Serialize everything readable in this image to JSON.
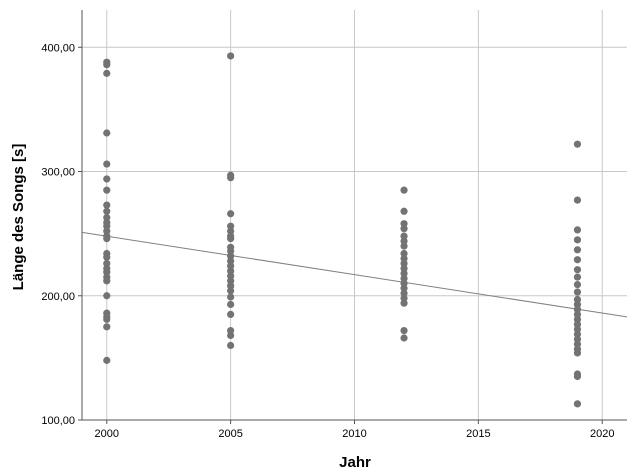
{
  "chart_data": {
    "type": "scatter",
    "title": "",
    "xlabel": "Jahr",
    "ylabel": "Länge des Songs [s]",
    "xlim": [
      1999,
      2021
    ],
    "ylim": [
      100,
      430
    ],
    "x_ticks": [
      2000,
      2005,
      2010,
      2015,
      2020
    ],
    "x_tick_labels": [
      "2000",
      "2005",
      "2010",
      "2015",
      "2020"
    ],
    "y_ticks": [
      100,
      200,
      300,
      400
    ],
    "y_tick_labels": [
      "100,00",
      "200,00",
      "300,00",
      "400,00"
    ],
    "grid": true,
    "point_color": "#737373",
    "series": [
      {
        "points": [
          [
            2000,
            388
          ],
          [
            2000,
            386
          ],
          [
            2000,
            379
          ],
          [
            2000,
            331
          ],
          [
            2000,
            306
          ],
          [
            2000,
            294
          ],
          [
            2000,
            285
          ],
          [
            2000,
            273
          ],
          [
            2000,
            268
          ],
          [
            2000,
            263
          ],
          [
            2000,
            259
          ],
          [
            2000,
            256
          ],
          [
            2000,
            252
          ],
          [
            2000,
            248
          ],
          [
            2000,
            246
          ],
          [
            2000,
            234
          ],
          [
            2000,
            231
          ],
          [
            2000,
            226
          ],
          [
            2000,
            222
          ],
          [
            2000,
            219
          ],
          [
            2000,
            215
          ],
          [
            2000,
            212
          ],
          [
            2000,
            200
          ],
          [
            2000,
            186
          ],
          [
            2000,
            183
          ],
          [
            2000,
            181
          ],
          [
            2000,
            175
          ],
          [
            2000,
            148
          ],
          [
            2005,
            393
          ],
          [
            2005,
            297
          ],
          [
            2005,
            295
          ],
          [
            2005,
            266
          ],
          [
            2005,
            256
          ],
          [
            2005,
            252
          ],
          [
            2005,
            248
          ],
          [
            2005,
            246
          ],
          [
            2005,
            239
          ],
          [
            2005,
            236
          ],
          [
            2005,
            232
          ],
          [
            2005,
            228
          ],
          [
            2005,
            224
          ],
          [
            2005,
            220
          ],
          [
            2005,
            216
          ],
          [
            2005,
            212
          ],
          [
            2005,
            208
          ],
          [
            2005,
            204
          ],
          [
            2005,
            199
          ],
          [
            2005,
            193
          ],
          [
            2005,
            185
          ],
          [
            2005,
            172
          ],
          [
            2005,
            168
          ],
          [
            2005,
            160
          ],
          [
            2012,
            285
          ],
          [
            2012,
            268
          ],
          [
            2012,
            258
          ],
          [
            2012,
            254
          ],
          [
            2012,
            248
          ],
          [
            2012,
            244
          ],
          [
            2012,
            240
          ],
          [
            2012,
            234
          ],
          [
            2012,
            230
          ],
          [
            2012,
            226
          ],
          [
            2012,
            222
          ],
          [
            2012,
            218
          ],
          [
            2012,
            214
          ],
          [
            2012,
            210
          ],
          [
            2012,
            206
          ],
          [
            2012,
            202
          ],
          [
            2012,
            198
          ],
          [
            2012,
            194
          ],
          [
            2012,
            172
          ],
          [
            2012,
            166
          ],
          [
            2019,
            322
          ],
          [
            2019,
            277
          ],
          [
            2019,
            253
          ],
          [
            2019,
            245
          ],
          [
            2019,
            237
          ],
          [
            2019,
            229
          ],
          [
            2019,
            221
          ],
          [
            2019,
            215
          ],
          [
            2019,
            209
          ],
          [
            2019,
            203
          ],
          [
            2019,
            197
          ],
          [
            2019,
            193
          ],
          [
            2019,
            189
          ],
          [
            2019,
            185
          ],
          [
            2019,
            181
          ],
          [
            2019,
            177
          ],
          [
            2019,
            173
          ],
          [
            2019,
            169
          ],
          [
            2019,
            165
          ],
          [
            2019,
            161
          ],
          [
            2019,
            157
          ],
          [
            2019,
            154
          ],
          [
            2019,
            137
          ],
          [
            2019,
            135
          ],
          [
            2019,
            113
          ]
        ]
      }
    ],
    "fit_line": {
      "x": [
        1999,
        2021
      ],
      "y": [
        251,
        183
      ],
      "color": "#808080"
    }
  }
}
